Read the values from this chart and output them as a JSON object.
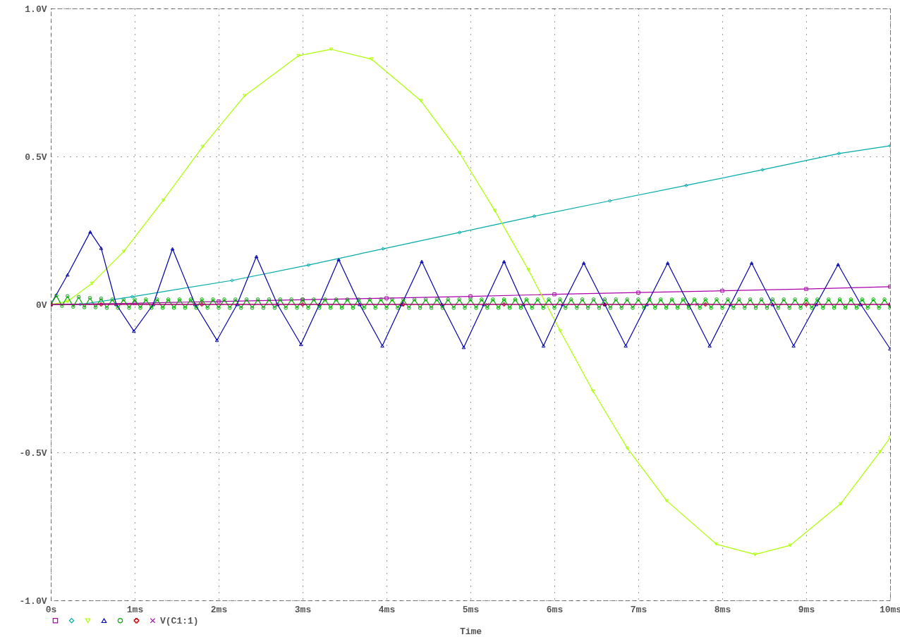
{
  "chart_data": {
    "type": "line",
    "xlabel": "Time",
    "xlim": [
      0,
      10
    ],
    "ylim": [
      -1,
      1
    ],
    "xticks": [
      {
        "value": 0,
        "label": "0s"
      },
      {
        "value": 1,
        "label": "1ms"
      },
      {
        "value": 2,
        "label": "2ms"
      },
      {
        "value": 3,
        "label": "3ms"
      },
      {
        "value": 4,
        "label": "4ms"
      },
      {
        "value": 5,
        "label": "5ms"
      },
      {
        "value": 6,
        "label": "6ms"
      },
      {
        "value": 7,
        "label": "7ms"
      },
      {
        "value": 8,
        "label": "8ms"
      },
      {
        "value": 9,
        "label": "9ms"
      },
      {
        "value": 10,
        "label": "10ms"
      }
    ],
    "yticks": [
      {
        "value": -1,
        "label": "-1.0V"
      },
      {
        "value": -0.5,
        "label": "-0.5V"
      },
      {
        "value": 0,
        "label": "0V"
      },
      {
        "value": 0.5,
        "label": "0.5V"
      },
      {
        "value": 1,
        "label": "1.0V"
      }
    ],
    "grid": true,
    "legend": "bottom left",
    "series": [
      {
        "color": "#aa00aa",
        "marker": "square",
        "x": [
          0,
          1,
          2,
          3,
          4,
          5,
          6,
          7,
          8,
          9,
          10
        ],
        "values": [
          0,
          0.004,
          0.01,
          0.016,
          0.021,
          0.027,
          0.034,
          0.04,
          0.046,
          0.052,
          0.06
        ]
      },
      {
        "color": "#00aaaa",
        "marker": "diamond",
        "x": [
          0,
          0.35,
          0.97,
          2.16,
          3.07,
          3.96,
          4.87,
          5.76,
          6.66,
          7.57,
          8.48,
          9.39,
          10
        ],
        "values": [
          0,
          0,
          0.026,
          0.081,
          0.133,
          0.188,
          0.243,
          0.298,
          0.35,
          0.402,
          0.455,
          0.51,
          0.536
        ]
      },
      {
        "color": "#aaff00",
        "marker": "triangle-down",
        "x": [
          0,
          0.2,
          0.49,
          0.87,
          1.34,
          1.81,
          2.31,
          2.95,
          3.34,
          3.82,
          4.41,
          4.87,
          5.29,
          5.69,
          6.07,
          6.46,
          6.87,
          7.34,
          7.93,
          8.39,
          8.81,
          9.41,
          9.88,
          10
        ],
        "values": [
          0,
          0.01,
          0.071,
          0.179,
          0.352,
          0.533,
          0.705,
          0.84,
          0.862,
          0.829,
          0.688,
          0.512,
          0.317,
          0.117,
          -0.09,
          -0.293,
          -0.486,
          -0.664,
          -0.81,
          -0.845,
          -0.814,
          -0.674,
          -0.498,
          -0.45
        ]
      },
      {
        "color": "#0000aa",
        "marker": "triangle",
        "x": [
          0,
          0.2,
          0.47,
          0.6,
          0.78,
          0.99,
          1.22,
          1.45,
          1.72,
          1.98,
          2.22,
          2.45,
          2.7,
          2.98,
          3.2,
          3.43,
          3.68,
          3.95,
          4.18,
          4.42,
          4.66,
          4.92,
          5.16,
          5.4,
          5.63,
          5.87,
          6.1,
          6.35,
          6.6,
          6.85,
          7.1,
          7.35,
          7.6,
          7.85,
          8.1,
          8.35,
          8.6,
          8.85,
          9.12,
          9.38,
          9.65,
          10
        ],
        "values": [
          0,
          0.1,
          0.245,
          0.19,
          0,
          -0.09,
          0,
          0.188,
          0,
          -0.121,
          0,
          0.162,
          0,
          -0.135,
          0,
          0.152,
          0,
          -0.14,
          0,
          0.145,
          0,
          -0.145,
          0,
          0.145,
          0,
          -0.14,
          0,
          0.14,
          0,
          -0.14,
          0,
          0.14,
          0,
          -0.14,
          0,
          0.14,
          0,
          -0.14,
          0,
          0.135,
          0,
          -0.15
        ]
      },
      {
        "color": "#00aa00",
        "marker": "circle",
        "x": [
          0,
          0.067,
          0.133,
          0.2,
          0.267,
          0.333,
          0.4,
          0.467,
          0.533,
          0.6,
          0.667,
          0.733,
          0.8,
          0.867,
          0.933,
          1,
          1.067,
          1.133,
          1.2,
          1.267,
          1.333,
          1.4,
          1.467,
          1.533,
          1.6,
          1.667,
          1.733,
          1.8,
          1.867,
          1.933,
          2,
          2.067,
          2.133,
          2.2,
          2.267,
          2.333,
          2.4,
          2.467,
          2.533,
          2.6,
          2.667,
          2.733,
          2.8,
          2.867,
          2.933,
          3,
          3.067,
          3.133,
          3.2,
          3.267,
          3.333,
          3.4,
          3.467,
          3.533,
          3.6,
          3.667,
          3.733,
          3.8,
          3.867,
          3.933,
          4,
          4.067,
          4.133,
          4.2,
          4.267,
          4.333,
          4.4,
          4.467,
          4.533,
          4.6,
          4.667,
          4.733,
          4.8,
          4.867,
          4.933,
          5,
          5.067,
          5.133,
          5.2,
          5.267,
          5.333,
          5.4,
          5.467,
          5.533,
          5.6,
          5.667,
          5.733,
          5.8,
          5.867,
          5.933,
          6,
          6.067,
          6.133,
          6.2,
          6.267,
          6.333,
          6.4,
          6.467,
          6.533,
          6.6,
          6.667,
          6.733,
          6.8,
          6.867,
          6.933,
          7,
          7.067,
          7.133,
          7.2,
          7.267,
          7.333,
          7.4,
          7.467,
          7.533,
          7.6,
          7.667,
          7.733,
          7.8,
          7.867,
          7.933,
          8,
          8.067,
          8.133,
          8.2,
          8.267,
          8.333,
          8.4,
          8.467,
          8.533,
          8.6,
          8.667,
          8.733,
          8.8,
          8.867,
          8.933,
          9,
          9.067,
          9.133,
          9.2,
          9.267,
          9.333,
          9.4,
          9.467,
          9.533,
          9.6,
          9.667,
          9.733,
          9.8,
          9.867,
          9.933,
          10
        ],
        "values": [
          0,
          0.03,
          -0.005,
          0.028,
          -0.008,
          0.025,
          -0.01,
          0.022,
          -0.01,
          0.02,
          -0.012,
          0.017,
          -0.012,
          0.017,
          -0.012,
          0.017,
          -0.012,
          0.017,
          -0.012,
          0.017,
          -0.012,
          0.017,
          -0.012,
          0.017,
          -0.012,
          0.017,
          -0.012,
          0.017,
          -0.012,
          0.017,
          -0.012,
          0.017,
          -0.012,
          0.017,
          -0.012,
          0.017,
          -0.012,
          0.017,
          -0.012,
          0.017,
          -0.012,
          0.017,
          -0.012,
          0.017,
          -0.012,
          0.017,
          -0.012,
          0.017,
          -0.012,
          0.017,
          -0.012,
          0.017,
          -0.012,
          0.017,
          -0.012,
          0.017,
          -0.012,
          0.017,
          -0.012,
          0.017,
          -0.012,
          0.017,
          -0.012,
          0.017,
          -0.012,
          0.017,
          -0.012,
          0.017,
          -0.012,
          0.017,
          -0.012,
          0.017,
          -0.012,
          0.017,
          -0.012,
          0.017,
          -0.012,
          0.017,
          -0.012,
          0.017,
          -0.012,
          0.017,
          -0.012,
          0.017,
          -0.012,
          0.017,
          -0.012,
          0.017,
          -0.012,
          0.017,
          -0.012,
          0.017,
          -0.012,
          0.017,
          -0.012,
          0.017,
          -0.012,
          0.017,
          -0.012,
          0.017,
          -0.012,
          0.017,
          -0.012,
          0.017,
          -0.012,
          0.017,
          -0.012,
          0.017,
          -0.012,
          0.017,
          -0.012,
          0.017,
          -0.012,
          0.017,
          -0.012,
          0.017,
          -0.012,
          0.017,
          -0.012,
          0.017,
          -0.012,
          0.017,
          -0.012,
          0.017,
          -0.012,
          0.017,
          -0.012,
          0.017,
          -0.012,
          0.017,
          -0.012,
          0.017,
          -0.012,
          0.017,
          -0.012,
          0.017,
          -0.012,
          0.017,
          -0.012,
          0.017,
          -0.012,
          0.017,
          -0.012,
          0.017,
          -0.012,
          0.017,
          -0.012,
          0.017,
          -0.012,
          0.017,
          -0.012
        ]
      },
      {
        "color": "#aa0000",
        "marker": "plus",
        "x": [
          0,
          0.6,
          1.8,
          3,
          4.2,
          5.4,
          6.6,
          7.8,
          9,
          10
        ],
        "values": [
          0,
          0,
          0,
          0,
          0,
          0,
          0,
          0,
          0,
          0
        ]
      },
      {
        "name": "V(C1:1)",
        "color": "#aa00aa",
        "marker": "cross",
        "x": [
          0,
          2.7,
          5.2,
          7.7,
          10
        ],
        "values": [
          0,
          0,
          0,
          0,
          0
        ]
      }
    ]
  }
}
